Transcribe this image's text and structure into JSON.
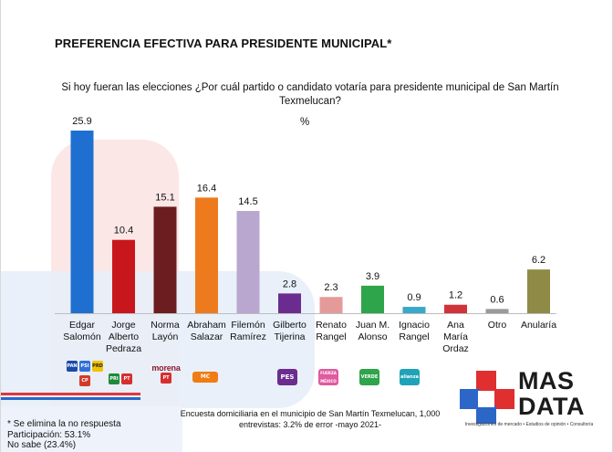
{
  "title": "PREFERENCIA EFECTIVA PARA PRESIDENTE MUNICIPAL*",
  "subtitle": "Si hoy fueran las elecciones ¿Por cuál partido o candidato votaría para presidente municipal de San Martín Texmelucan?",
  "unit": "%",
  "colors": {
    "edgar": "#1f6fd1",
    "jorge": "#c8161d",
    "norma": "#6b1d1f",
    "abraham": "#ee7a1e",
    "filemon": "#b9a7cf",
    "gilberto": "#6a2d8f",
    "renato": "#e59a9a",
    "juan": "#2ea44b",
    "ignacio": "#3aa8c8",
    "ana": "#d1333a",
    "otro": "#9a9a9a",
    "anularia": "#8f8a45"
  },
  "chart_data": {
    "type": "bar",
    "categories": [
      "Edgar Salomón",
      "Jorge Alberto Pedraza",
      "Norma Layón",
      "Abraham Salazar",
      "Filemón Ramírez",
      "Gilberto Tijerina",
      "Renato Rangel",
      "Juan M. Alonso",
      "Ignacio Rangel",
      "Ana María Ordaz",
      "Otro",
      "Anularía"
    ],
    "values": [
      25.9,
      10.4,
      15.1,
      16.4,
      14.5,
      2.8,
      2.3,
      3.9,
      0.9,
      1.2,
      0.6,
      6.2
    ],
    "value_labels": [
      "25.9",
      "10.4",
      "15.1",
      "16.4",
      "14.5",
      "2.8",
      "2.3",
      "3.9",
      "0.9",
      "1.2",
      "0.6",
      "6.2"
    ],
    "ylim": [
      0,
      26
    ]
  },
  "labels": [
    [
      "Edgar",
      "Salomón"
    ],
    [
      "Jorge",
      "Alberto",
      "Pedraza"
    ],
    [
      "Norma",
      "Layón"
    ],
    [
      "Abraham",
      "Salazar"
    ],
    [
      "Filemón",
      "Ramírez"
    ],
    [
      "Gilberto",
      "Tijerina"
    ],
    [
      "Renato",
      "Rangel"
    ],
    [
      "Juan M.",
      "Alonso"
    ],
    [
      "Ignacio",
      "Rangel"
    ],
    [
      "Ana",
      "María",
      "Ordaz"
    ],
    [
      "Otro"
    ],
    [
      "Anularía"
    ]
  ],
  "party_logos": {
    "edgar": [
      "PAN",
      "PSI",
      "PRD",
      "CP"
    ],
    "jorge": [
      "PRI",
      "PT"
    ],
    "norma_text": "morena",
    "norma_pt": "PT",
    "abraham": "MC",
    "gilberto": "PES",
    "renato": "FUERZA MÉXICO",
    "juan": "VERDE",
    "ignacio": "alianza"
  },
  "notes": {
    "line1": "* Se elimina la no respuesta",
    "line2": "Participación: 53.1%",
    "line3": "No sabe (23.4%)"
  },
  "source": {
    "line1": "Encuesta domiciliaria en el municipio de San Martín Texmelucan, 1,000",
    "line2": "entrevistas: 3.2% de error -mayo 2021-"
  },
  "logo": {
    "word1": "MAS",
    "word2": "DATA",
    "tagline": "Investigaciones de mercado • Estudios de opinión • Consultoría"
  }
}
